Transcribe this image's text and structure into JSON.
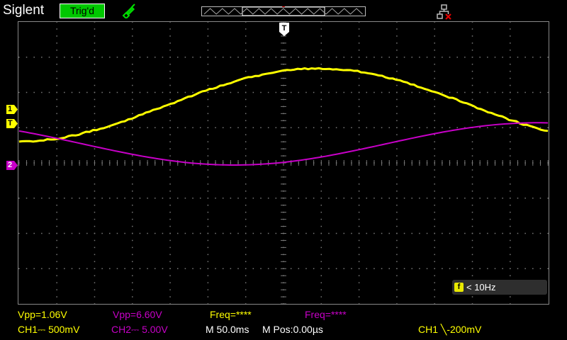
{
  "brand": "Siglent",
  "trigger_status": "Trig'd",
  "colors": {
    "ch1": "#ffff00",
    "ch2": "#c800c8",
    "trig_badge": "#00c800",
    "grid": "#6e6e6e",
    "status_white": "#ffffff"
  },
  "icons": [
    "probe-icon",
    "network-disconnected-icon",
    "trigger-position-icon"
  ],
  "markers": {
    "ch1": "1",
    "trigger_level": "T",
    "ch2": "2",
    "trigger_position": "T"
  },
  "measurements": {
    "ch1_vpp": "Vpp=1.06V",
    "ch2_vpp": "Vpp=6.60V",
    "ch1_freq": "Freq=****",
    "ch2_freq": "Freq=****"
  },
  "settings": {
    "ch1_scale": "CH1⎓ 500mV",
    "ch2_scale": "CH2⎓ 5.00V",
    "timebase": "M 50.0ms",
    "horizontal_pos": "M Pos:0.00µs",
    "trigger": "CH1 ╲-200mV"
  },
  "counter": {
    "icon_label": "f",
    "text": "< 10Hz"
  }
}
